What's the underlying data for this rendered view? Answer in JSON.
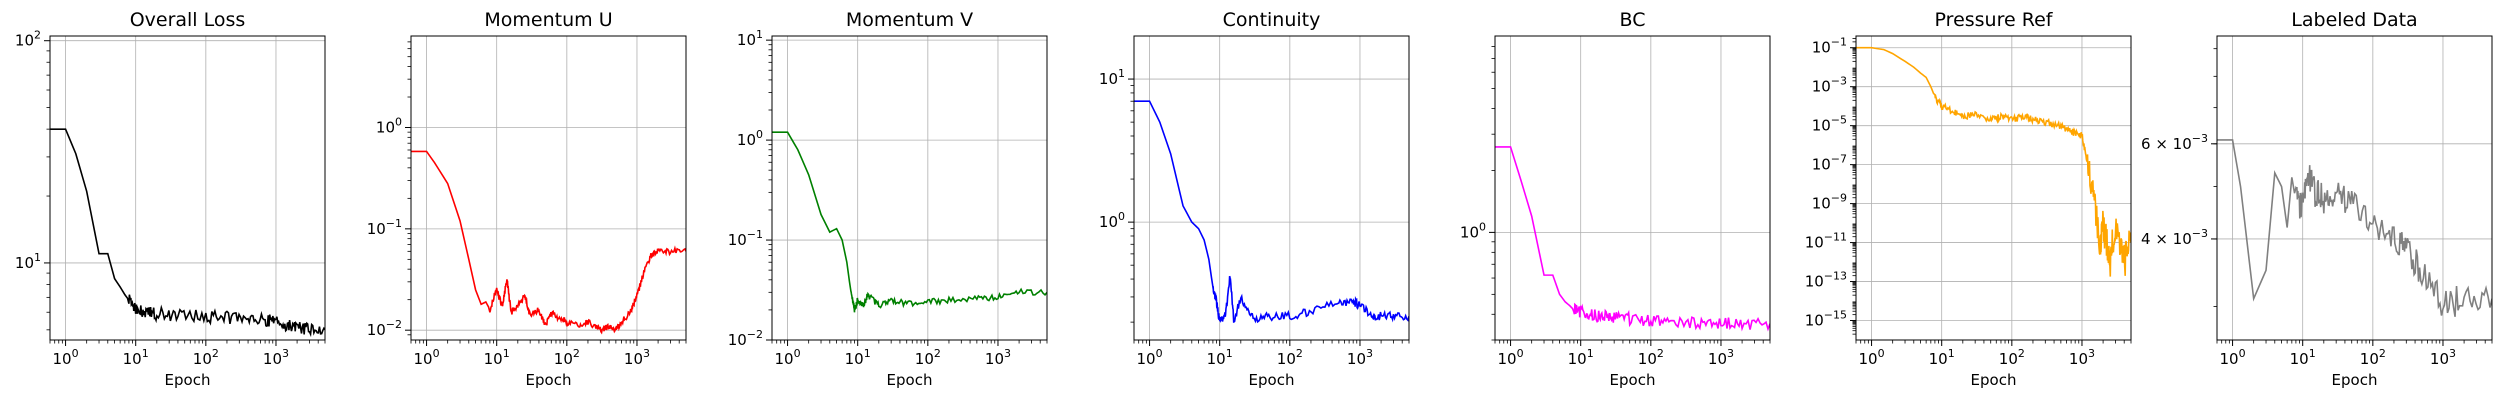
{
  "figure": {
    "panel_count": 7
  },
  "chart_data": [
    {
      "type": "line",
      "title": "Overall Loss",
      "xlabel": "Epoch",
      "ylabel": "",
      "xscale": "log",
      "yscale": "log",
      "xlim": [
        0.6,
        5000
      ],
      "ylim": [
        4.5,
        105
      ],
      "grid": true,
      "color": "#000000",
      "x_ticks": [
        {
          "v": 1,
          "label": "10",
          "exp": "0"
        },
        {
          "v": 10,
          "label": "10",
          "exp": "1"
        },
        {
          "v": 100,
          "label": "10",
          "exp": "2"
        },
        {
          "v": 1000,
          "label": "10",
          "exp": "3"
        }
      ],
      "y_ticks": [
        {
          "v": 10,
          "label": "10",
          "exp": "1"
        },
        {
          "v": 100,
          "label": "10",
          "exp": "2"
        }
      ],
      "series": [
        {
          "x": [
            0.6,
            1,
            1.4,
            2,
            3,
            4,
            5,
            6,
            7,
            8,
            10,
            14,
            20,
            40,
            100,
            200,
            400,
            700,
            1000,
            1500,
            2000,
            3000,
            5000
          ],
          "y": [
            40,
            40,
            31,
            21,
            11,
            11,
            8.5,
            7.8,
            7.2,
            6.8,
            6.3,
            6.0,
            5.9,
            5.8,
            5.75,
            5.7,
            5.65,
            5.55,
            5.4,
            5.2,
            5.1,
            5.05,
            5.0
          ]
        }
      ]
    },
    {
      "type": "line",
      "title": "Momentum U",
      "xlabel": "Epoch",
      "ylabel": "",
      "xscale": "log",
      "yscale": "log",
      "xlim": [
        0.6,
        5000
      ],
      "ylim": [
        0.008,
        8
      ],
      "grid": true,
      "color": "#ff0000",
      "x_ticks": [
        {
          "v": 1,
          "label": "10",
          "exp": "0"
        },
        {
          "v": 10,
          "label": "10",
          "exp": "1"
        },
        {
          "v": 100,
          "label": "10",
          "exp": "2"
        },
        {
          "v": 1000,
          "label": "10",
          "exp": "3"
        }
      ],
      "y_ticks": [
        {
          "v": 0.01,
          "label": "10",
          "exp": "−2"
        },
        {
          "v": 0.1,
          "label": "10",
          "exp": "−1"
        },
        {
          "v": 1,
          "label": "10",
          "exp": "0"
        }
      ],
      "series": [
        {
          "x": [
            0.6,
            1,
            1.3,
            2,
            3,
            4,
            5,
            6,
            7,
            8,
            10,
            12,
            14,
            16,
            20,
            25,
            30,
            40,
            50,
            60,
            80,
            100,
            150,
            200,
            300,
            400,
            500,
            600,
            800,
            1000,
            1300,
            1600,
            2000,
            3000,
            5000
          ],
          "y": [
            0.58,
            0.58,
            0.45,
            0.28,
            0.12,
            0.05,
            0.025,
            0.018,
            0.019,
            0.016,
            0.025,
            0.017,
            0.032,
            0.015,
            0.017,
            0.022,
            0.014,
            0.016,
            0.011,
            0.015,
            0.013,
            0.012,
            0.011,
            0.012,
            0.01,
            0.011,
            0.01,
            0.012,
            0.015,
            0.022,
            0.04,
            0.055,
            0.06,
            0.06,
            0.06
          ]
        }
      ]
    },
    {
      "type": "line",
      "title": "Momentum V",
      "xlabel": "Epoch",
      "ylabel": "",
      "xscale": "log",
      "yscale": "log",
      "xlim": [
        0.6,
        5000
      ],
      "ylim": [
        0.01,
        11
      ],
      "grid": true,
      "color": "#008000",
      "x_ticks": [
        {
          "v": 1,
          "label": "10",
          "exp": "0"
        },
        {
          "v": 10,
          "label": "10",
          "exp": "1"
        },
        {
          "v": 100,
          "label": "10",
          "exp": "2"
        },
        {
          "v": 1000,
          "label": "10",
          "exp": "3"
        }
      ],
      "y_ticks": [
        {
          "v": 0.01,
          "label": "10",
          "exp": "−2"
        },
        {
          "v": 0.1,
          "label": "10",
          "exp": "−1"
        },
        {
          "v": 1,
          "label": "10",
          "exp": "0"
        },
        {
          "v": 10,
          "label": "10",
          "exp": "1"
        }
      ],
      "series": [
        {
          "x": [
            0.6,
            1,
            1.4,
            2,
            3,
            4,
            5,
            6,
            7,
            8,
            9,
            10,
            12,
            14,
            20,
            30,
            50,
            100,
            200,
            500,
            1000,
            2000,
            5000
          ],
          "y": [
            1.2,
            1.2,
            0.8,
            0.45,
            0.18,
            0.12,
            0.13,
            0.1,
            0.06,
            0.03,
            0.02,
            0.025,
            0.022,
            0.028,
            0.022,
            0.025,
            0.023,
            0.024,
            0.025,
            0.026,
            0.027,
            0.03,
            0.03
          ]
        }
      ]
    },
    {
      "type": "line",
      "title": "Continuity",
      "xlabel": "Epoch",
      "ylabel": "",
      "xscale": "log",
      "yscale": "log",
      "xlim": [
        0.6,
        5000
      ],
      "ylim": [
        0.15,
        20
      ],
      "grid": true,
      "color": "#0000ff",
      "x_ticks": [
        {
          "v": 1,
          "label": "10",
          "exp": "0"
        },
        {
          "v": 10,
          "label": "10",
          "exp": "1"
        },
        {
          "v": 100,
          "label": "10",
          "exp": "2"
        },
        {
          "v": 1000,
          "label": "10",
          "exp": "3"
        }
      ],
      "y_ticks": [
        {
          "v": 1,
          "label": "10",
          "exp": "0"
        },
        {
          "v": 10,
          "label": "10",
          "exp": "1"
        }
      ],
      "series": [
        {
          "x": [
            0.6,
            1,
            1.4,
            2,
            3,
            4,
            5,
            6,
            7,
            8,
            9,
            10,
            12,
            14,
            16,
            20,
            30,
            50,
            100,
            200,
            500,
            800,
            1000,
            1500,
            2000,
            3000,
            5000
          ],
          "y": [
            7.0,
            7.0,
            5.0,
            3.0,
            1.3,
            1.0,
            0.9,
            0.75,
            0.55,
            0.35,
            0.28,
            0.2,
            0.22,
            0.42,
            0.2,
            0.3,
            0.21,
            0.22,
            0.22,
            0.24,
            0.27,
            0.28,
            0.26,
            0.22,
            0.22,
            0.22,
            0.22
          ]
        }
      ]
    },
    {
      "type": "line",
      "title": "BC",
      "xlabel": "Epoch",
      "ylabel": "",
      "xscale": "log",
      "yscale": "log",
      "xlim": [
        0.6,
        5000
      ],
      "ylim": [
        0.3,
        9
      ],
      "grid": true,
      "color": "#ff00ff",
      "x_ticks": [
        {
          "v": 1,
          "label": "10",
          "exp": "0"
        },
        {
          "v": 10,
          "label": "10",
          "exp": "1"
        },
        {
          "v": 100,
          "label": "10",
          "exp": "2"
        },
        {
          "v": 1000,
          "label": "10",
          "exp": "3"
        }
      ],
      "y_ticks": [
        {
          "v": 1,
          "label": "10",
          "exp": "0"
        }
      ],
      "series": [
        {
          "x": [
            0.6,
            1,
            1.4,
            2,
            3,
            4,
            5,
            6,
            7,
            8,
            10,
            14,
            20,
            30,
            50,
            100,
            200,
            500,
            1000,
            2000,
            5000
          ],
          "y": [
            2.6,
            2.6,
            1.8,
            1.2,
            0.62,
            0.62,
            0.5,
            0.46,
            0.44,
            0.42,
            0.41,
            0.4,
            0.39,
            0.39,
            0.38,
            0.375,
            0.37,
            0.365,
            0.36,
            0.36,
            0.36
          ]
        }
      ]
    },
    {
      "type": "line",
      "title": "Pressure Ref",
      "xlabel": "Epoch",
      "ylabel": "",
      "xscale": "log",
      "yscale": "log",
      "xlim": [
        0.6,
        5000
      ],
      "ylim": [
        1e-16,
        0.4
      ],
      "grid": true,
      "color": "#ffa500",
      "x_ticks": [
        {
          "v": 1,
          "label": "10",
          "exp": "0"
        },
        {
          "v": 10,
          "label": "10",
          "exp": "1"
        },
        {
          "v": 100,
          "label": "10",
          "exp": "2"
        },
        {
          "v": 1000,
          "label": "10",
          "exp": "3"
        }
      ],
      "y_ticks": [
        {
          "v": 0.1,
          "label": "10",
          "exp": "−1"
        },
        {
          "v": 0.001,
          "label": "10",
          "exp": "−3"
        },
        {
          "v": 1e-05,
          "label": "10",
          "exp": "−5"
        },
        {
          "v": 1e-07,
          "label": "10",
          "exp": "−7"
        },
        {
          "v": 1e-09,
          "label": "10",
          "exp": "−9"
        },
        {
          "v": 1e-11,
          "label": "10",
          "exp": "−11"
        },
        {
          "v": 1e-13,
          "label": "10",
          "exp": "−13"
        },
        {
          "v": 1e-15,
          "label": "10",
          "exp": "−15"
        }
      ],
      "series": [
        {
          "x": [
            0.6,
            1,
            1.5,
            2,
            3,
            4,
            5,
            6,
            7,
            8,
            10,
            15,
            20,
            30,
            50,
            70,
            100,
            150,
            200,
            300,
            500,
            700,
            1000,
            1200,
            1500,
            1800,
            2000,
            2500,
            3000,
            4000,
            5000
          ],
          "y": [
            0.1,
            0.1,
            0.08,
            0.05,
            0.02,
            0.01,
            0.005,
            0.003,
            0.001,
            0.0003,
            0.0001,
            5e-05,
            3e-05,
            4e-05,
            2e-05,
            3e-05,
            2e-05,
            3e-05,
            2e-05,
            1.5e-05,
            1e-05,
            5e-06,
            3e-06,
            1e-07,
            1e-09,
            1e-11,
            1e-10,
            1e-12,
            1e-10,
            1e-12,
            1e-11
          ]
        }
      ]
    },
    {
      "type": "line",
      "title": "Labeled Data",
      "xlabel": "Epoch",
      "ylabel": "",
      "xscale": "log",
      "yscale": "log",
      "xlim": [
        0.6,
        5000
      ],
      "ylim": [
        0.0026,
        0.0095
      ],
      "grid": true,
      "color": "#808080",
      "x_ticks": [
        {
          "v": 1,
          "label": "10",
          "exp": "0"
        },
        {
          "v": 10,
          "label": "10",
          "exp": "1"
        },
        {
          "v": 100,
          "label": "10",
          "exp": "2"
        },
        {
          "v": 1000,
          "label": "10",
          "exp": "3"
        }
      ],
      "y_ticks": [
        {
          "v": 0.004,
          "label": "4 × 10",
          "exp": "−3"
        },
        {
          "v": 0.006,
          "label": "6 × 10",
          "exp": "−3"
        }
      ],
      "series": [
        {
          "x": [
            0.6,
            1,
            1.3,
            2,
            3,
            4,
            5,
            6,
            7,
            8,
            10,
            12,
            15,
            20,
            30,
            50,
            100,
            200,
            300,
            500,
            1000,
            2000,
            5000
          ],
          "y": [
            0.0061,
            0.0061,
            0.005,
            0.0031,
            0.0035,
            0.0053,
            0.005,
            0.0042,
            0.0052,
            0.0047,
            0.0046,
            0.0052,
            0.0049,
            0.0047,
            0.0049,
            0.0046,
            0.0043,
            0.0041,
            0.0038,
            0.0035,
            0.003,
            0.0031,
            0.0031
          ]
        }
      ]
    }
  ]
}
